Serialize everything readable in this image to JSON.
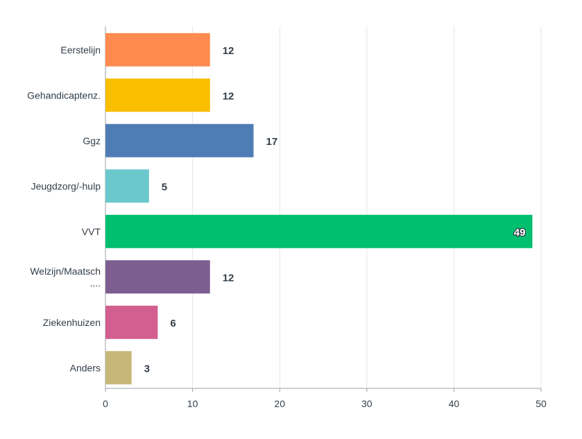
{
  "chart_data": {
    "type": "bar",
    "orientation": "horizontal",
    "categories": [
      "Eerstelijn",
      "Gehandicaptenz.",
      "Ggz",
      "Jeugdzorg/-hulp",
      "VVT",
      "Welzijn/Maatsch ....",
      "Ziekenhuizen",
      "Anders"
    ],
    "category_lines": [
      [
        "Eerstelijn"
      ],
      [
        "Gehandicaptenz."
      ],
      [
        "Ggz"
      ],
      [
        "Jeugdzorg/-hulp"
      ],
      [
        "VVT"
      ],
      [
        "Welzijn/Maatsch",
        "...."
      ],
      [
        "Ziekenhuizen"
      ],
      [
        "Anders"
      ]
    ],
    "values": [
      12,
      12,
      17,
      5,
      49,
      12,
      6,
      3
    ],
    "colors": [
      "#ff8b4f",
      "#f9be00",
      "#507cb6",
      "#6bc8cd",
      "#00bf6f",
      "#7d5e90",
      "#d25f90",
      "#c7b879"
    ],
    "xlim": [
      0,
      50
    ],
    "xticks": [
      0,
      10,
      20,
      30,
      40,
      50
    ],
    "grid": true,
    "title": "",
    "xlabel": "",
    "ylabel": ""
  }
}
